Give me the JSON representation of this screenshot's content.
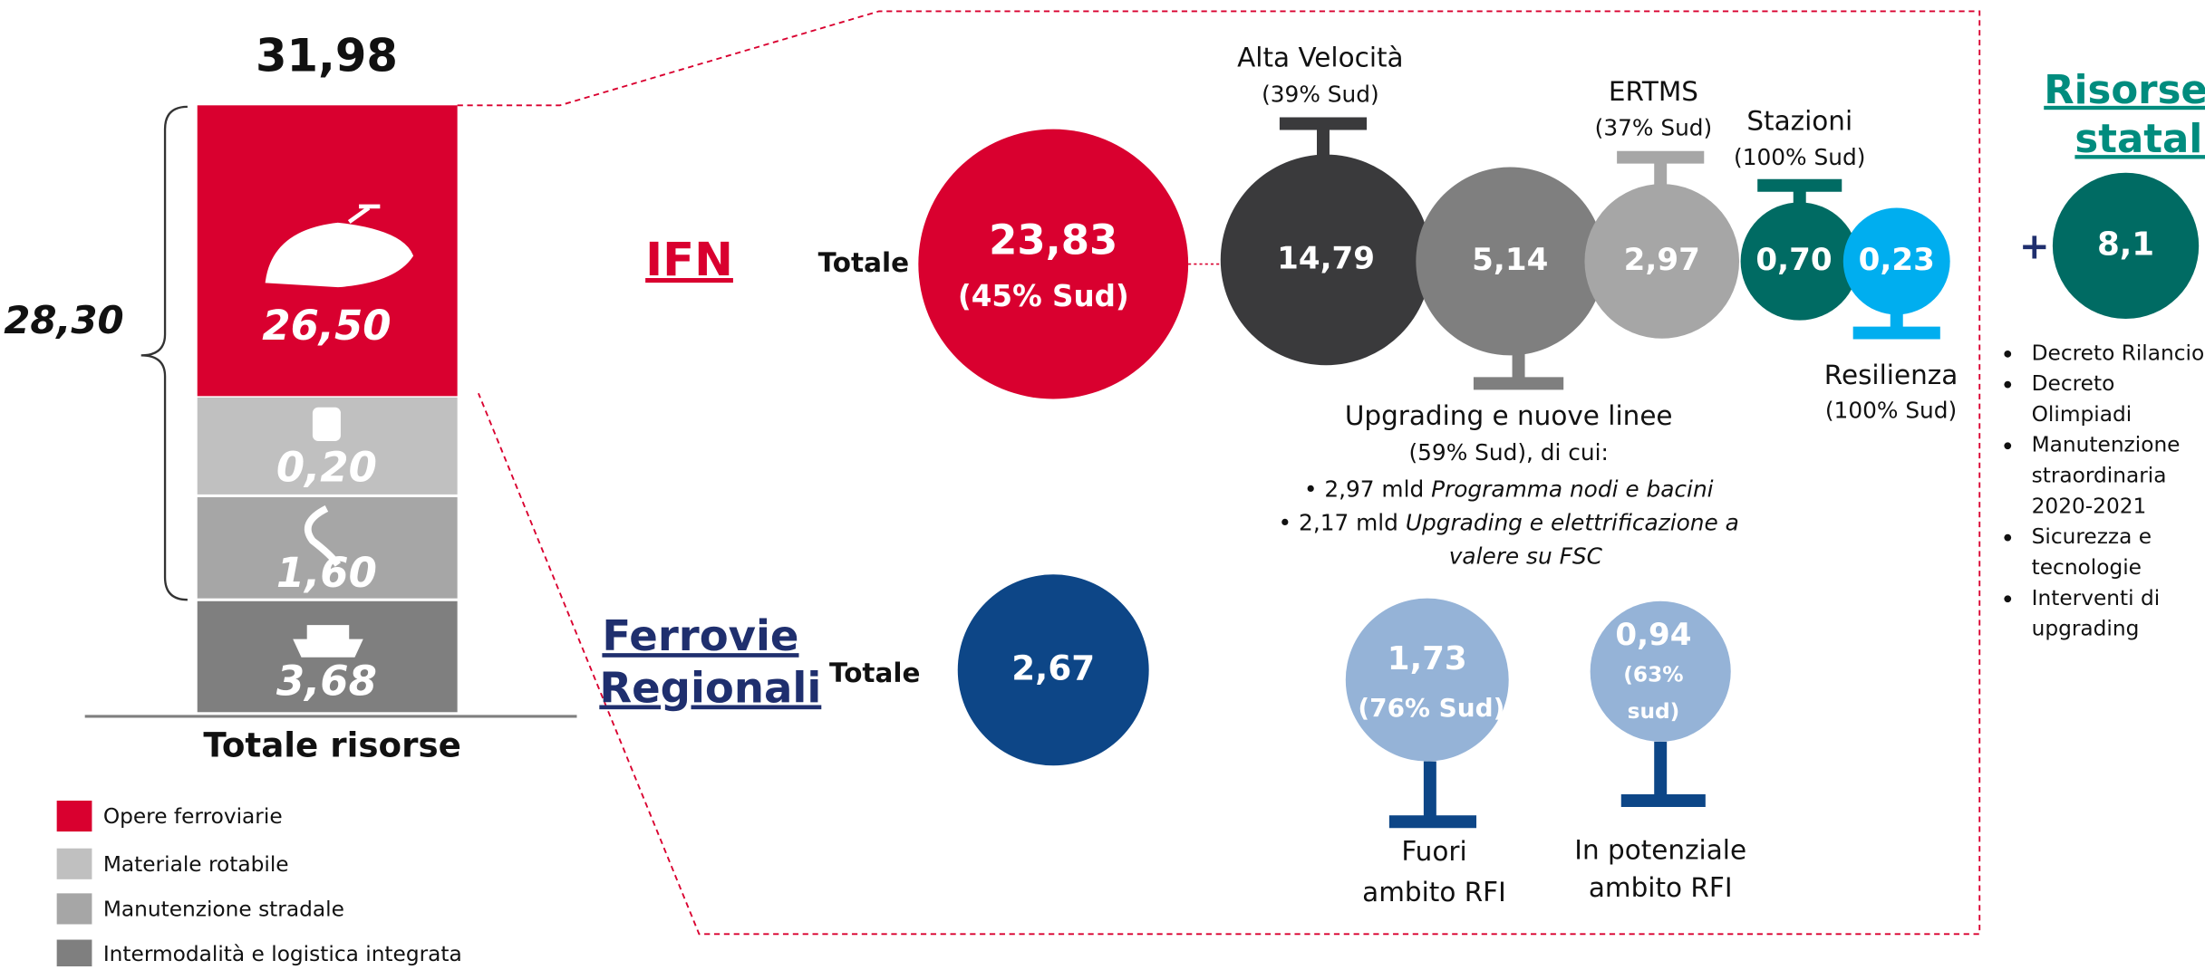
{
  "stack": {
    "total": "31,98",
    "bracket": "28,30",
    "segments": [
      "26,50",
      "0,20",
      "1,60",
      "3,68"
    ],
    "caption": "Totale risorse"
  },
  "legend": [
    "Opere ferroviarie",
    "Materiale rotabile",
    "Manutenzione stradale",
    "Intermodalità e logistica integrata"
  ],
  "ifn": {
    "title": "IFN",
    "total_label": "Totale",
    "total": "23,83",
    "total_note": "(45% Sud)",
    "items": [
      {
        "name": "Alta Velocità",
        "note": "(39% Sud)",
        "value": "14,79"
      },
      {
        "name": "Upgrading e nuove linee",
        "note": "(59% Sud), di cui:",
        "value": "5,14",
        "details": [
          {
            "amount": "2,97 mld",
            "text": "Programma nodi e bacini"
          },
          {
            "amount": "2,17 mld",
            "text": "Upgrading e elettrificazione a",
            "text2": "valere su FSC"
          }
        ]
      },
      {
        "name": "ERTMS",
        "note": "(37% Sud)",
        "value": "2,97"
      },
      {
        "name": "Stazioni",
        "note": "(100% Sud)",
        "value": "0,70"
      },
      {
        "name": "Resilienza",
        "note": "(100% Sud)",
        "value": "0,23"
      }
    ]
  },
  "regional": {
    "title": [
      "Ferrovie",
      "Regionali"
    ],
    "total_label": "Totale",
    "total": "2,67",
    "items": [
      {
        "value": "1,73",
        "note": "(76% Sud)",
        "name": [
          "Fuori",
          "ambito RFI"
        ]
      },
      {
        "value": "0,94",
        "note": [
          "(63%",
          "sud)"
        ],
        "name": [
          "In potenziale",
          "ambito RFI"
        ]
      }
    ]
  },
  "state": {
    "title": [
      "Risorse",
      "statali"
    ],
    "plus": "+",
    "value": "8,1",
    "items": [
      [
        "Decreto Rilancio"
      ],
      [
        "Decreto",
        "Olimpiadi"
      ],
      [
        "Manutenzione",
        "straordinaria",
        "2020-2021"
      ],
      [
        "Sicurezza e",
        "tecnologie"
      ],
      [
        "Interventi di",
        "upgrading"
      ]
    ]
  }
}
